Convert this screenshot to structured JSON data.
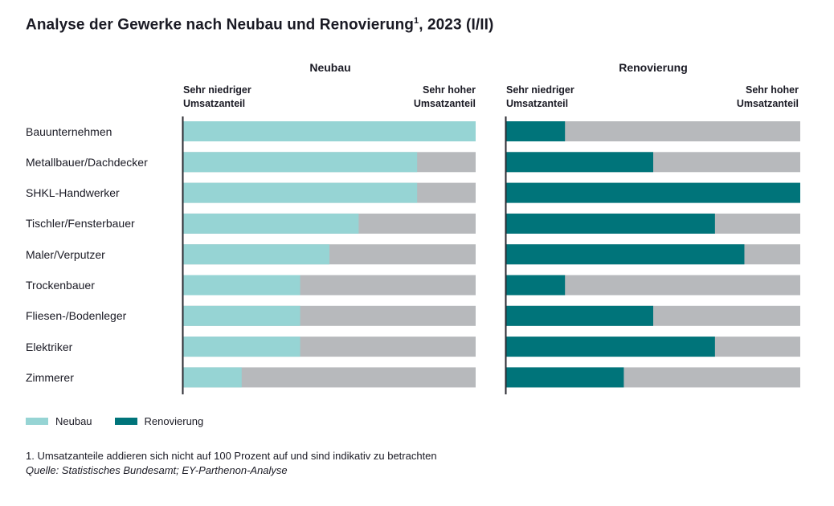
{
  "title": "Analyse der Gewerke nach Neubau und Renovierung",
  "title_sup": "1",
  "title_suffix": ", 2023 (I/II)",
  "panels": {
    "neubau": {
      "title": "Neubau",
      "low_label_1": "Sehr niedriger",
      "low_label_2": "Umsatzanteil",
      "high_label_1": "Sehr hoher",
      "high_label_2": "Umsatzanteil"
    },
    "renovierung": {
      "title": "Renovierung",
      "low_label_1": "Sehr niedriger",
      "low_label_2": "Umsatzanteil",
      "high_label_1": "Sehr hoher",
      "high_label_2": "Umsatzanteil"
    }
  },
  "chart_data": {
    "type": "bar",
    "orientation": "horizontal",
    "title": "Analyse der Gewerke nach Neubau und Renovierung, 2023 (I/II)",
    "xlim": [
      0,
      100
    ],
    "categories": [
      "Bauunternehmen",
      "Metallbauer/Dachdecker",
      "SHKL-Handwerker",
      "Tischler/Fensterbauer",
      "Maler/Verputzer",
      "Trockenbauer",
      "Fliesen-/Bodenleger",
      "Elektriker",
      "Zimmerer"
    ],
    "series": [
      {
        "name": "Neubau",
        "values": [
          100,
          80,
          80,
          60,
          50,
          40,
          40,
          40,
          20
        ]
      },
      {
        "name": "Renovierung",
        "values": [
          20,
          50,
          100,
          71,
          81,
          20,
          50,
          71,
          40
        ]
      }
    ]
  },
  "colors": {
    "neubau": "#96d4d4",
    "renovierung": "#00747a",
    "remainder": "#b7b9bc",
    "axis": "#2a2a30"
  },
  "legend": {
    "neubau": "Neubau",
    "renovierung": "Renovierung"
  },
  "footnote": "1. Umsatzanteile addieren sich nicht auf 100 Prozent auf und sind indikativ zu betrachten",
  "source": "Quelle: Statistisches Bundesamt; EY-Parthenon-Analyse"
}
